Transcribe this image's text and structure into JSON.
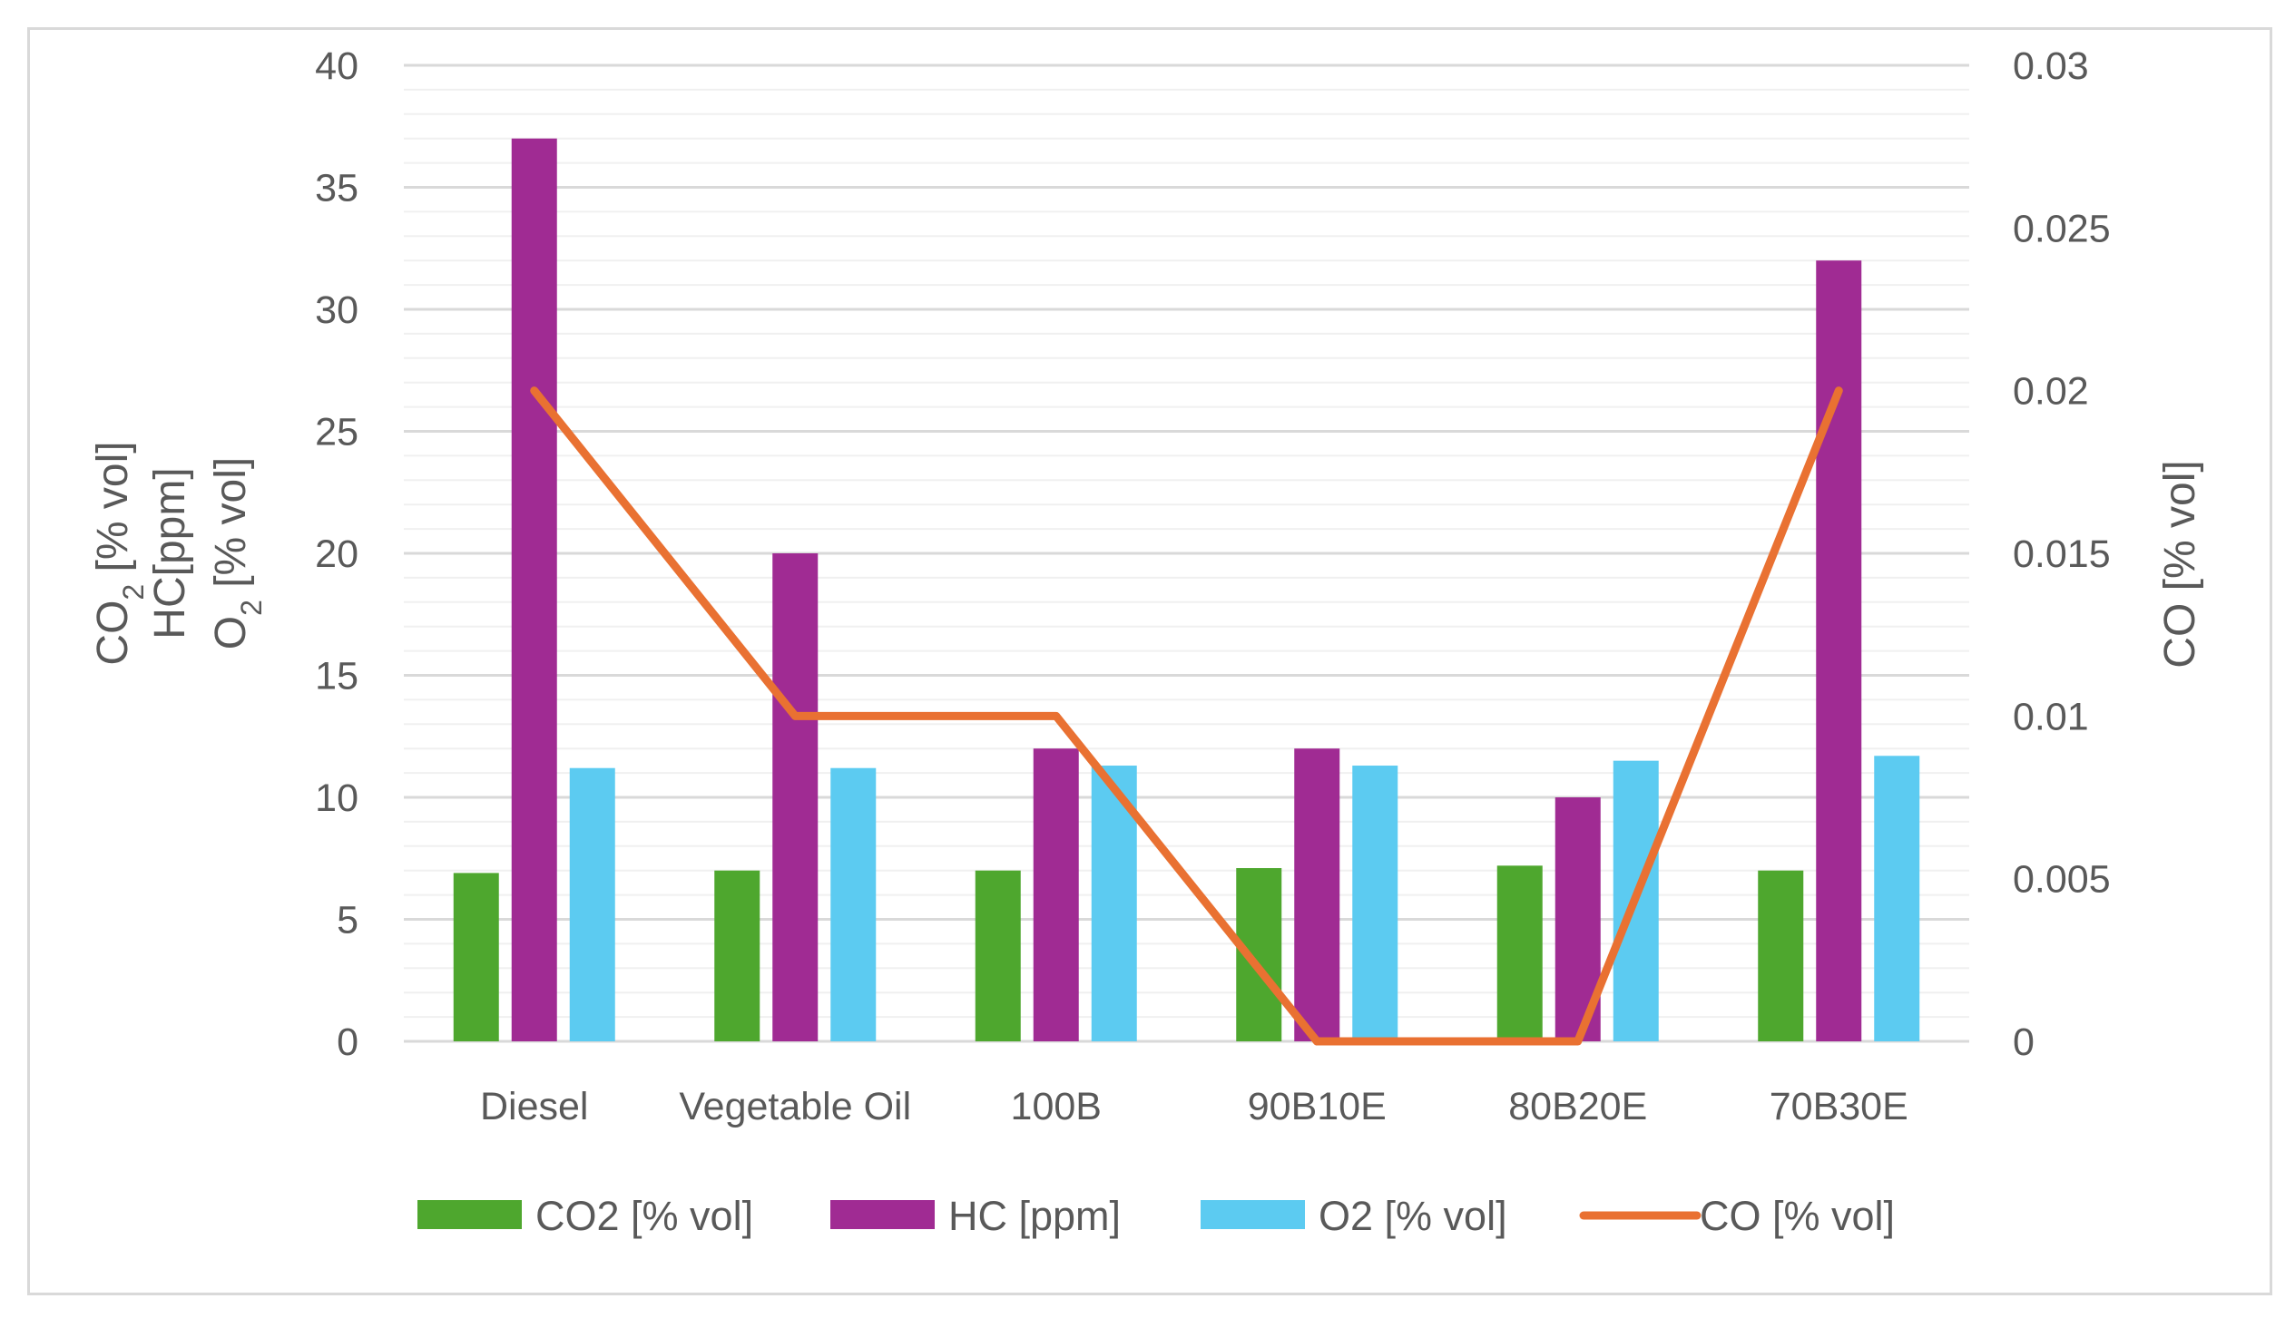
{
  "chart_data": {
    "type": "bar",
    "categories": [
      "Diesel",
      "Vegetable Oil",
      "100B",
      "90B10E",
      "80B20E",
      "70B30E"
    ],
    "series": [
      {
        "name": "CO2 [% vol]",
        "kind": "bar",
        "axis": "left",
        "color": "#4ea72e",
        "values": [
          6.9,
          7.0,
          7.0,
          7.1,
          7.2,
          7.0
        ]
      },
      {
        "name": "HC [ppm]",
        "kind": "bar",
        "axis": "left",
        "color": "#a02b93",
        "values": [
          37,
          20,
          12,
          12,
          10,
          32
        ]
      },
      {
        "name": "O2 [% vol]",
        "kind": "bar",
        "axis": "left",
        "color": "#5ccbf1",
        "values": [
          11.2,
          11.2,
          11.3,
          11.3,
          11.5,
          11.7
        ]
      },
      {
        "name": "CO [% vol]",
        "kind": "line",
        "axis": "right",
        "color": "#e97132",
        "values": [
          0.02,
          0.01,
          0.01,
          0,
          0,
          0.02
        ]
      }
    ],
    "left_axis": {
      "ylim": [
        0,
        40
      ],
      "ticks": [
        "0",
        "5",
        "10",
        "15",
        "20",
        "25",
        "30",
        "35",
        "40"
      ],
      "title_lines": [
        {
          "main": "CO",
          "sub": "2",
          "rest": " [% vol]"
        },
        {
          "main": "HC[ppm]",
          "sub": "",
          "rest": ""
        },
        {
          "main": "O",
          "sub": "2",
          "rest": " [% vol]"
        }
      ]
    },
    "right_axis": {
      "ylim": [
        0,
        0.03
      ],
      "ticks": [
        "0",
        "0.005",
        "0.01",
        "0.015",
        "0.02",
        "0.025",
        "0.03"
      ],
      "title": "CO [% vol]"
    },
    "grid": true,
    "legend_position": "bottom"
  }
}
